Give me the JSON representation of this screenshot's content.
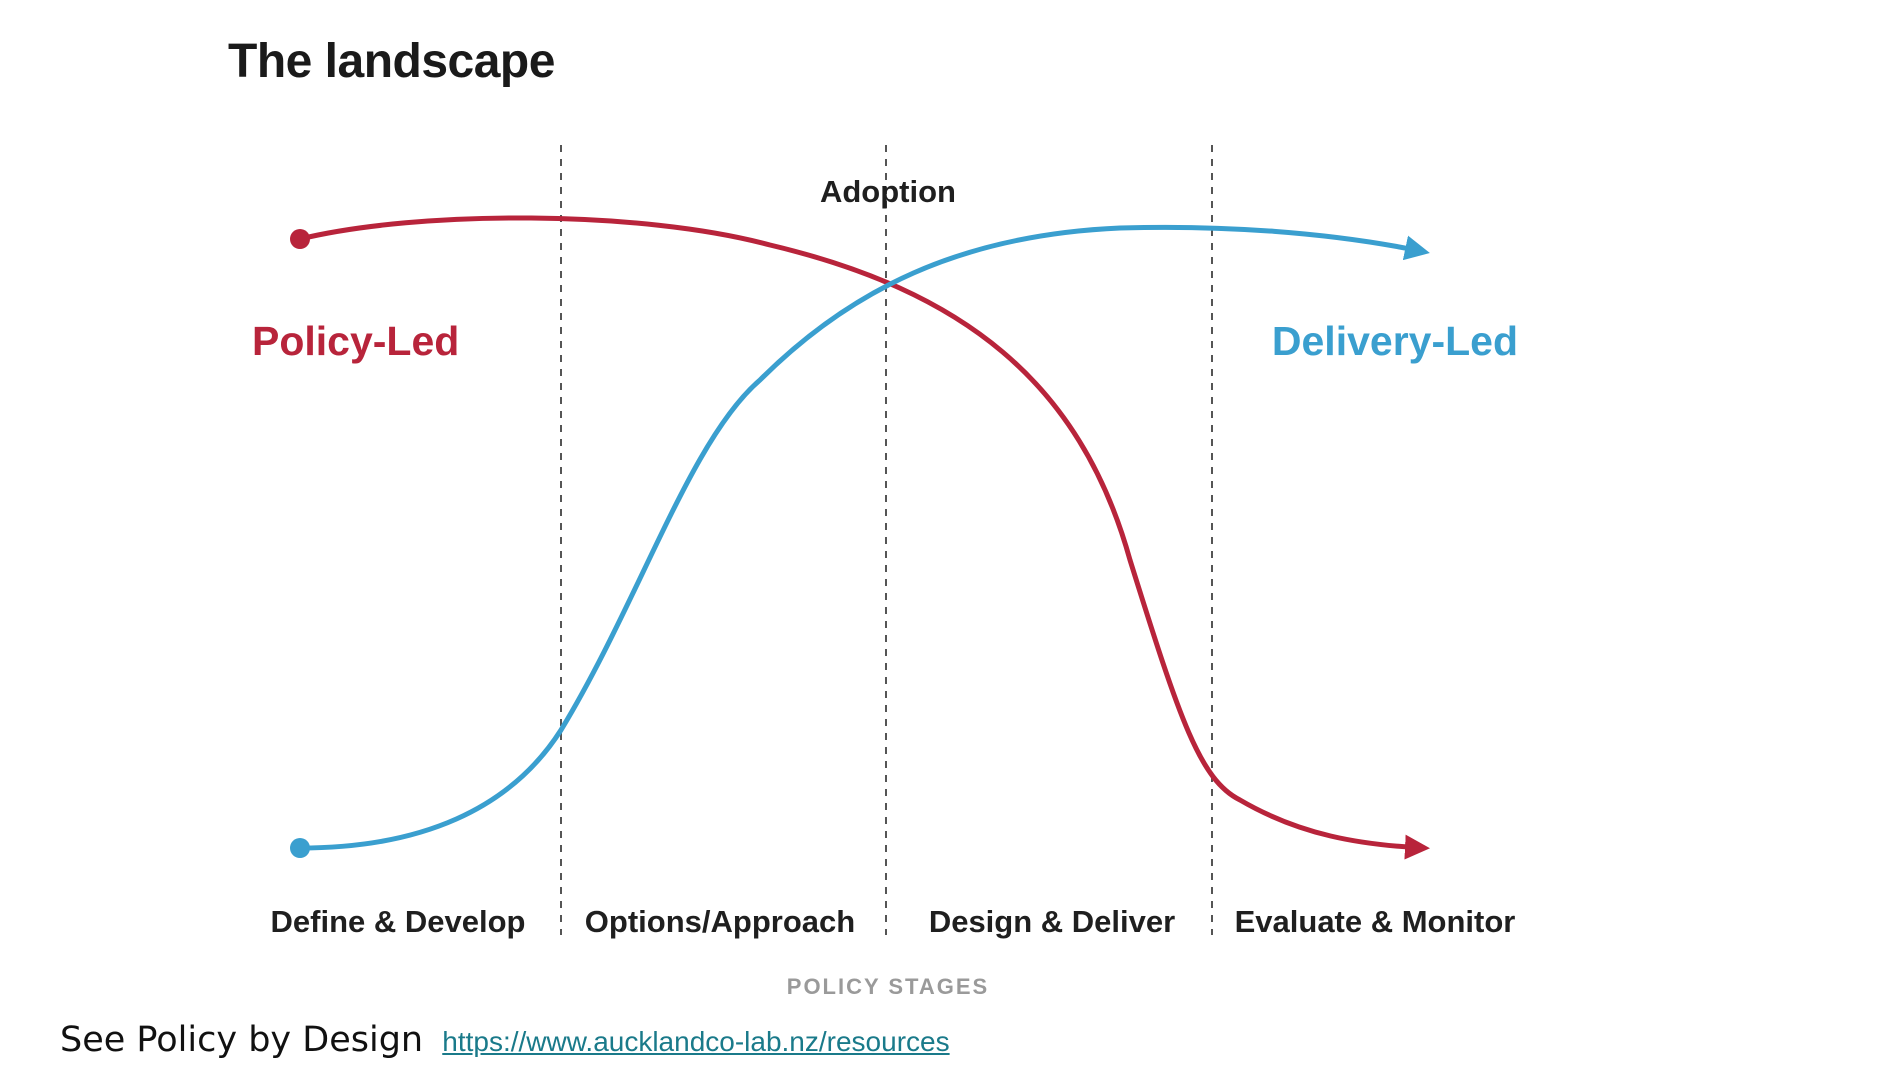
{
  "title": "The landscape",
  "diagram": {
    "adoption_label": "Adoption",
    "policy_led_label": "Policy-Led",
    "delivery_led_label": "Delivery-Led",
    "stages": [
      "Define & Develop",
      "Options/Approach",
      "Design & Deliver",
      "Evaluate & Monitor"
    ],
    "axis_caption": "POLICY STAGES",
    "colors": {
      "policy_led": "#b8243b",
      "delivery_led": "#3a9fcf",
      "divider": "#555555"
    }
  },
  "footer": {
    "text": "See Policy by Design",
    "link_text": "https://www.aucklandco-lab.nz/resources"
  }
}
